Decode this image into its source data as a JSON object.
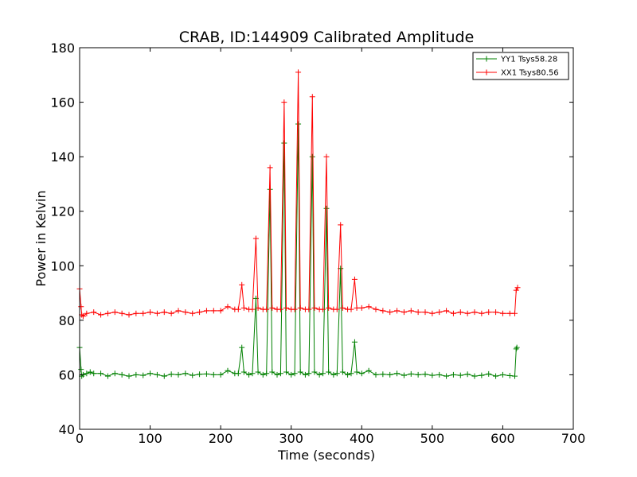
{
  "chart_data": {
    "type": "line",
    "title": "CRAB, ID:144909 Calibrated Amplitude",
    "xlabel": "Time (seconds)",
    "ylabel": "Power in Kelvin",
    "xlim": [
      0,
      700
    ],
    "ylim": [
      40,
      180
    ],
    "xticks": [
      0,
      100,
      200,
      300,
      400,
      500,
      600,
      700
    ],
    "yticks": [
      40,
      60,
      80,
      100,
      120,
      140,
      160,
      180
    ],
    "grid": false,
    "legend_position": "top-right",
    "series": [
      {
        "name": "YY1 Tsys58.28",
        "color": "#008000",
        "marker": "+",
        "points": [
          [
            0,
            70
          ],
          [
            2,
            62
          ],
          [
            3,
            59.5
          ],
          [
            5,
            60
          ],
          [
            10,
            60.5
          ],
          [
            15,
            61
          ],
          [
            20,
            60.5
          ],
          [
            30,
            60.5
          ],
          [
            40,
            59.5
          ],
          [
            50,
            60.5
          ],
          [
            60,
            60
          ],
          [
            70,
            59.5
          ],
          [
            80,
            60
          ],
          [
            90,
            59.8
          ],
          [
            100,
            60.5
          ],
          [
            110,
            60
          ],
          [
            120,
            59.5
          ],
          [
            130,
            60.2
          ],
          [
            140,
            60
          ],
          [
            150,
            60.5
          ],
          [
            160,
            59.8
          ],
          [
            170,
            60.2
          ],
          [
            180,
            60.3
          ],
          [
            190,
            60
          ],
          [
            200,
            60
          ],
          [
            210,
            61.5
          ],
          [
            220,
            60.5
          ],
          [
            225,
            60.5
          ],
          [
            230,
            70
          ],
          [
            233,
            61
          ],
          [
            240,
            60
          ],
          [
            245,
            60.5
          ],
          [
            250,
            88
          ],
          [
            253,
            61
          ],
          [
            260,
            60
          ],
          [
            265,
            60.5
          ],
          [
            270,
            128
          ],
          [
            273,
            61
          ],
          [
            280,
            60
          ],
          [
            285,
            60.5
          ],
          [
            290,
            145
          ],
          [
            293,
            61
          ],
          [
            300,
            60
          ],
          [
            305,
            60.5
          ],
          [
            310,
            152
          ],
          [
            313,
            61
          ],
          [
            320,
            60
          ],
          [
            325,
            60.5
          ],
          [
            330,
            140
          ],
          [
            333,
            61
          ],
          [
            340,
            60
          ],
          [
            345,
            60.5
          ],
          [
            350,
            121
          ],
          [
            353,
            61
          ],
          [
            360,
            60
          ],
          [
            365,
            60.5
          ],
          [
            370,
            99
          ],
          [
            373,
            61
          ],
          [
            380,
            60
          ],
          [
            385,
            60.5
          ],
          [
            390,
            72
          ],
          [
            393,
            61
          ],
          [
            400,
            60.5
          ],
          [
            410,
            61.5
          ],
          [
            420,
            60
          ],
          [
            430,
            60.2
          ],
          [
            440,
            60
          ],
          [
            450,
            60.5
          ],
          [
            460,
            59.8
          ],
          [
            470,
            60.3
          ],
          [
            480,
            60
          ],
          [
            490,
            60.2
          ],
          [
            500,
            59.8
          ],
          [
            510,
            60
          ],
          [
            520,
            59.5
          ],
          [
            530,
            60
          ],
          [
            540,
            59.8
          ],
          [
            550,
            60.2
          ],
          [
            560,
            59.5
          ],
          [
            570,
            59.8
          ],
          [
            580,
            60.3
          ],
          [
            590,
            59.5
          ],
          [
            600,
            60
          ],
          [
            610,
            59.7
          ],
          [
            617,
            59.5
          ],
          [
            619,
            69.5
          ],
          [
            620,
            70
          ]
        ]
      },
      {
        "name": "XX1 Tsys80.56",
        "color": "#ff0000",
        "marker": "+",
        "points": [
          [
            0,
            91.5
          ],
          [
            2,
            85
          ],
          [
            3,
            82
          ],
          [
            5,
            81.5
          ],
          [
            10,
            82.5
          ],
          [
            20,
            83
          ],
          [
            30,
            82
          ],
          [
            40,
            82.5
          ],
          [
            50,
            83
          ],
          [
            60,
            82.5
          ],
          [
            70,
            82
          ],
          [
            80,
            82.5
          ],
          [
            90,
            82.5
          ],
          [
            100,
            83
          ],
          [
            110,
            82.5
          ],
          [
            120,
            83
          ],
          [
            130,
            82.5
          ],
          [
            140,
            83.5
          ],
          [
            150,
            83
          ],
          [
            160,
            82.5
          ],
          [
            170,
            83
          ],
          [
            180,
            83.5
          ],
          [
            190,
            83.5
          ],
          [
            200,
            83.5
          ],
          [
            210,
            85
          ],
          [
            220,
            84
          ],
          [
            225,
            84
          ],
          [
            230,
            93
          ],
          [
            233,
            84.5
          ],
          [
            240,
            84
          ],
          [
            245,
            84
          ],
          [
            250,
            110
          ],
          [
            253,
            84.5
          ],
          [
            260,
            84
          ],
          [
            265,
            84
          ],
          [
            270,
            136
          ],
          [
            273,
            84.5
          ],
          [
            280,
            84
          ],
          [
            285,
            84
          ],
          [
            290,
            160
          ],
          [
            293,
            84.5
          ],
          [
            300,
            84
          ],
          [
            305,
            84
          ],
          [
            310,
            171
          ],
          [
            313,
            84.5
          ],
          [
            320,
            84
          ],
          [
            325,
            84
          ],
          [
            330,
            162
          ],
          [
            333,
            84.5
          ],
          [
            340,
            84
          ],
          [
            345,
            84
          ],
          [
            350,
            140
          ],
          [
            353,
            84.5
          ],
          [
            360,
            84
          ],
          [
            365,
            84
          ],
          [
            370,
            115
          ],
          [
            373,
            84.5
          ],
          [
            380,
            84
          ],
          [
            385,
            84
          ],
          [
            390,
            95
          ],
          [
            393,
            84.5
          ],
          [
            400,
            84.5
          ],
          [
            410,
            85
          ],
          [
            420,
            84
          ],
          [
            430,
            83.5
          ],
          [
            440,
            83
          ],
          [
            450,
            83.5
          ],
          [
            460,
            83
          ],
          [
            470,
            83.5
          ],
          [
            480,
            83
          ],
          [
            490,
            83
          ],
          [
            500,
            82.5
          ],
          [
            510,
            83
          ],
          [
            520,
            83.5
          ],
          [
            530,
            82.5
          ],
          [
            540,
            83
          ],
          [
            550,
            82.5
          ],
          [
            560,
            83
          ],
          [
            570,
            82.5
          ],
          [
            580,
            83
          ],
          [
            590,
            83
          ],
          [
            600,
            82.5
          ],
          [
            610,
            82.5
          ],
          [
            617,
            82.5
          ],
          [
            619,
            91
          ],
          [
            621,
            92
          ]
        ]
      }
    ]
  }
}
